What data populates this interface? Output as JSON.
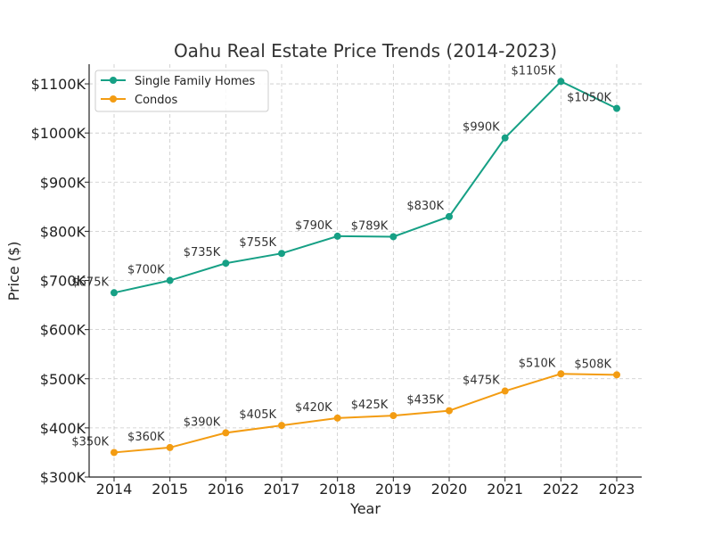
{
  "chart_data": {
    "type": "line",
    "title": "Oahu Real Estate Price Trends (2014-2023)",
    "xlabel": "Year",
    "ylabel": "Price ($)",
    "x": [
      "2014",
      "2015",
      "2016",
      "2017",
      "2018",
      "2019",
      "2020",
      "2021",
      "2022",
      "2023"
    ],
    "ylim": [
      300,
      1140
    ],
    "yticks": [
      300,
      400,
      500,
      600,
      700,
      800,
      900,
      1000,
      1100
    ],
    "ytick_labels": [
      "$300K",
      "$400K",
      "$500K",
      "$600K",
      "$700K",
      "$800K",
      "$900K",
      "$1000K",
      "$1100K"
    ],
    "grid": true,
    "legend_position": "top-left",
    "series": [
      {
        "name": "Single Family Homes",
        "color": "#16a085",
        "values": [
          675,
          700,
          735,
          755,
          790,
          789,
          830,
          990,
          1105,
          1050
        ],
        "labels": [
          "$675K",
          "$700K",
          "$735K",
          "$755K",
          "$790K",
          "$789K",
          "$830K",
          "$990K",
          "$1105K",
          "$1050K"
        ]
      },
      {
        "name": "Condos",
        "color": "#f39c12",
        "values": [
          350,
          360,
          390,
          405,
          420,
          425,
          435,
          475,
          510,
          508
        ],
        "labels": [
          "$350K",
          "$360K",
          "$390K",
          "$405K",
          "$420K",
          "$425K",
          "$435K",
          "$475K",
          "$510K",
          "$508K"
        ]
      }
    ]
  }
}
